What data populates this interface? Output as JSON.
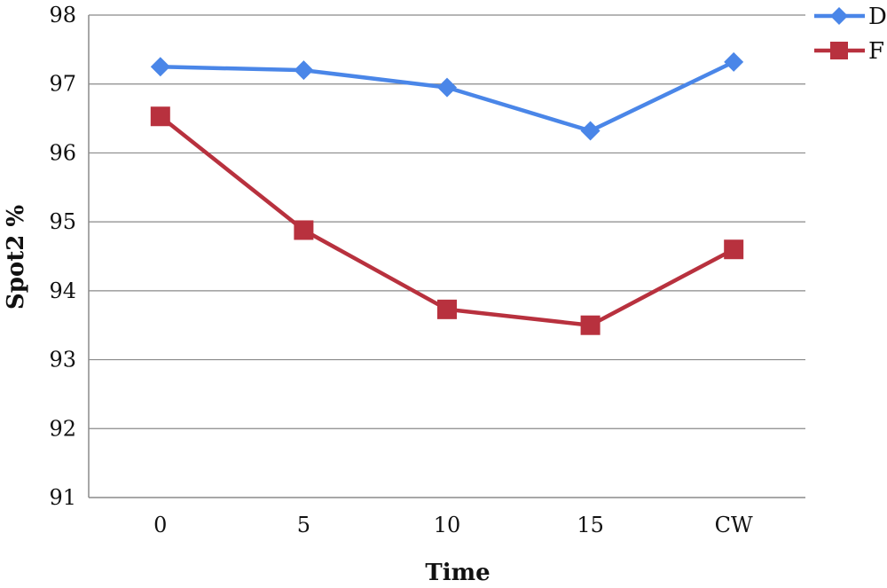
{
  "chart_data": {
    "type": "line",
    "title": "",
    "xlabel": "Time",
    "ylabel": "Spot2 %",
    "categories": [
      "0",
      "5",
      "10",
      "15",
      "CW"
    ],
    "ylim": [
      91,
      98
    ],
    "yticks": [
      91,
      92,
      93,
      94,
      95,
      96,
      97,
      98
    ],
    "grid": true,
    "legend_position": "top-right",
    "series": [
      {
        "name": "D",
        "color": "#4a86e8",
        "marker": "diamond",
        "values": [
          97.25,
          97.2,
          96.95,
          96.32,
          97.32
        ]
      },
      {
        "name": "F",
        "color": "#b8313e",
        "marker": "square",
        "values": [
          96.53,
          94.88,
          93.73,
          93.5,
          94.6
        ]
      }
    ]
  }
}
